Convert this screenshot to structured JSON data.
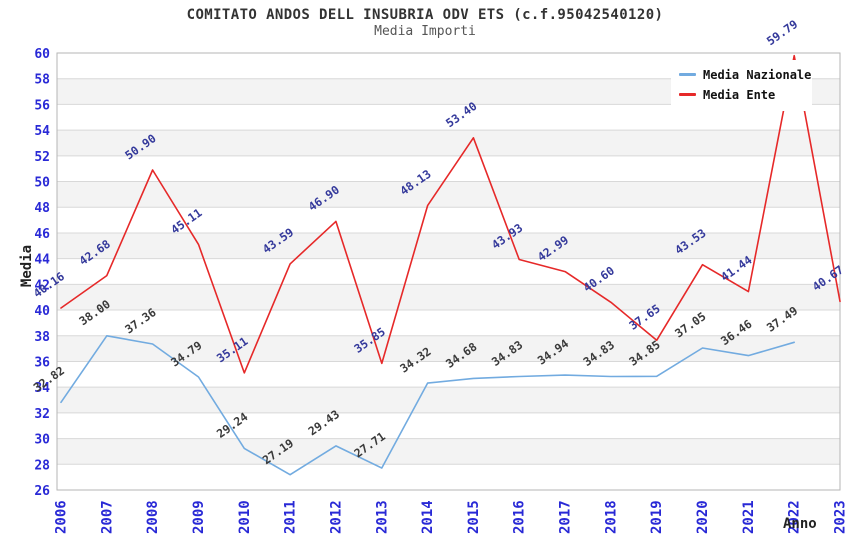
{
  "title": "COMITATO ANDOS DELL INSUBRIA ODV ETS (c.f.95042540120)",
  "subtitle": "Media Importi",
  "axes": {
    "x_label": "Anno",
    "y_label": "Media"
  },
  "legend": {
    "position": "top-right"
  },
  "chart_data": {
    "type": "line",
    "title": "COMITATO ANDOS DELL INSUBRIA ODV ETS (c.f.95042540120)",
    "subtitle": "Media Importi",
    "xlabel": "Anno",
    "ylabel": "Media",
    "ylim": [
      26,
      60
    ],
    "ytick_step": 2,
    "grid": "horizontal-bands",
    "legend_position": "top-right",
    "categories": [
      "2006",
      "2007",
      "2008",
      "2009",
      "2010",
      "2011",
      "2012",
      "2013",
      "2014",
      "2015",
      "2016",
      "2017",
      "2018",
      "2019",
      "2020",
      "2021",
      "2022",
      "2023"
    ],
    "series": [
      {
        "name": "Media Nazionale",
        "color": "#72abe0",
        "label_color": "#3a3a3a",
        "values": [
          32.82,
          38.0,
          37.36,
          34.79,
          29.24,
          27.19,
          29.43,
          27.71,
          34.32,
          34.68,
          34.83,
          34.94,
          34.83,
          34.85,
          37.05,
          36.46,
          37.49,
          null
        ]
      },
      {
        "name": "Media Ente",
        "color": "#e62929",
        "label_color": "#34399b",
        "values": [
          40.16,
          42.68,
          50.9,
          45.11,
          35.11,
          43.59,
          46.9,
          35.85,
          48.13,
          53.4,
          43.93,
          42.99,
          40.6,
          37.65,
          43.53,
          41.44,
          59.79,
          40.67
        ]
      }
    ],
    "colors": {
      "axis_tick": "#2929d6",
      "band": "#f3f3f3",
      "gridline": "#d8d8d8",
      "border": "#b6b6b6"
    }
  }
}
